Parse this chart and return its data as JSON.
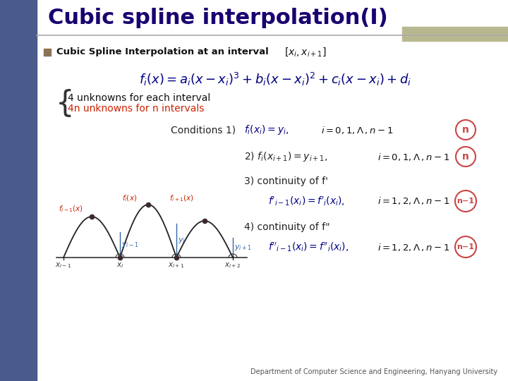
{
  "title": "Cubic spline interpolation(I)",
  "title_color": "#1a0070",
  "bg_color": "#ffffff",
  "left_bar_color": "#4a5a8a",
  "top_right_rect_color": "#b8b890",
  "bullet_color": "#8b7355",
  "bullet_text": "Cubic Spline Interpolation at an interval",
  "unknowns_line1": "4 unknowns for each interval",
  "unknowns_line2": "4n unknowns for n intervals",
  "cond1_circle": "n",
  "cond2_circle": "n",
  "cond3_circle": "n-1",
  "cond4_circle": "n-1",
  "circle_color": "#cc4444",
  "dark_red": "#cc2200",
  "navy": "#000080",
  "footer": "Department of Computer Science and Engineering, Hanyang University"
}
